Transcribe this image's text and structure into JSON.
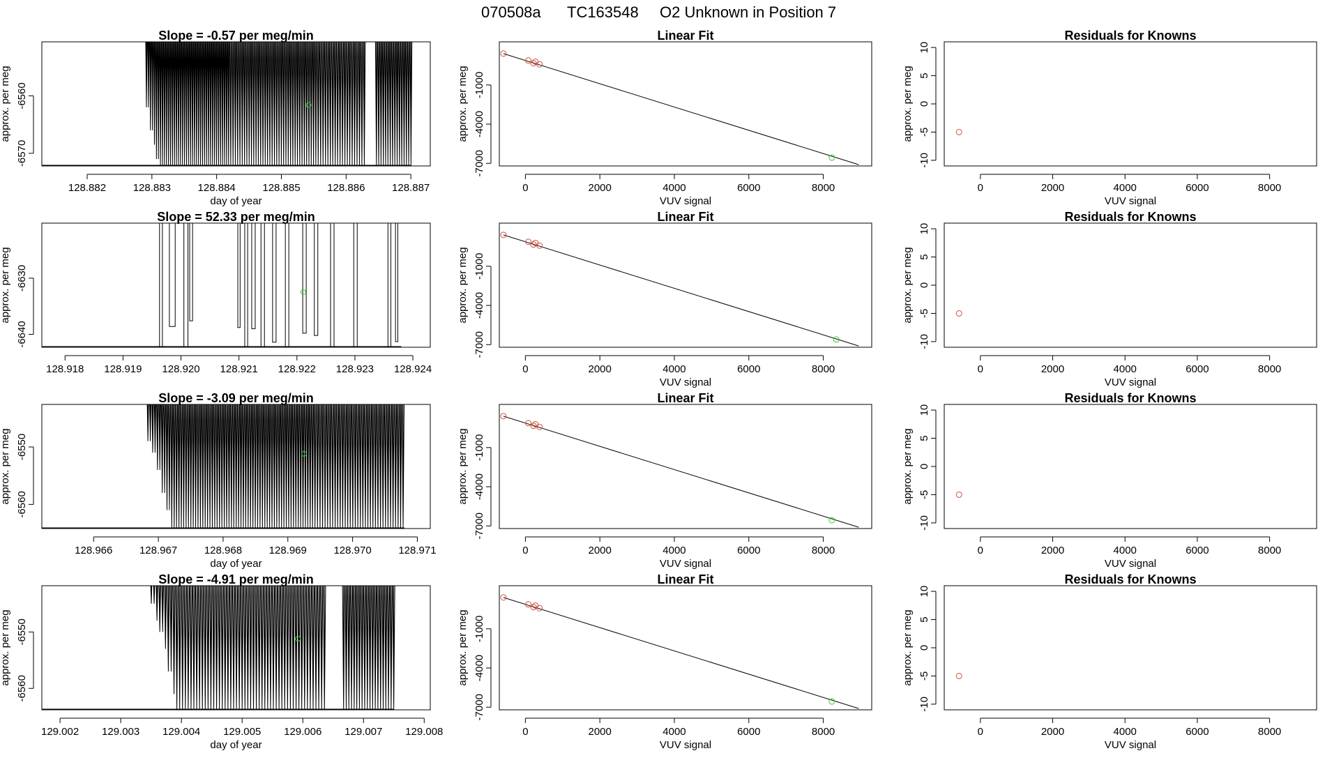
{
  "page": {
    "title": {
      "run": "070508a",
      "tank": "TC163548",
      "desc": "O2 Unknown in Position  7"
    }
  },
  "colors": {
    "known": "#d0513f",
    "unknown": "#33cc33",
    "line": "#000000"
  },
  "chart_data": [
    {
      "type": "line",
      "panel": "time",
      "row": 0,
      "title": "Slope =  -0.57  per meg/min",
      "xlabel": "day of year",
      "ylabel": "approx. per meg",
      "xlim": [
        128.8813,
        128.8873
      ],
      "ylim": [
        -6572.2,
        -6550.6
      ],
      "xticks": [
        128.882,
        128.883,
        128.884,
        128.885,
        128.886,
        128.887
      ],
      "xtick_labels": [
        "128.882",
        "128.883",
        "128.884",
        "128.885",
        "128.886",
        "128.887"
      ],
      "yticks": [
        -6560,
        -6570
      ],
      "ytick_labels": [
        "-6560",
        "-6570"
      ],
      "segments": [
        {
          "x0": 128.8829,
          "x1": 128.8842,
          "n": 42,
          "depth_seq": [
            -6562,
            -6566,
            -6568.5,
            -6571,
            -6572.2
          ],
          "bottom_start": 128.88315
        },
        {
          "x0": 128.8842,
          "x1": 128.88555,
          "n": 38,
          "depth_seq": [
            -6572.2
          ],
          "bottom_start": 128.8842
        },
        {
          "x0": 128.88555,
          "x1": 128.8863,
          "n": 20,
          "depth_seq": [
            -6572.2
          ],
          "bottom_start": 128.88555
        },
        {
          "x0": 128.88645,
          "x1": 128.88702,
          "n": 16,
          "depth_seq": [
            -6572.2
          ],
          "bottom_start": 128.88645
        }
      ],
      "bottom_line": [
        128.8813,
        128.887
      ],
      "marker": {
        "x": 128.88542,
        "y": -6561.6,
        "kind": "unknown"
      }
    },
    {
      "type": "scatter",
      "panel": "fit",
      "row": 0,
      "title": "Linear Fit",
      "xlabel": "VUV signal",
      "ylabel": "approx. per meg",
      "xlim": [
        -700,
        9300
      ],
      "ylim": [
        -7200,
        2300
      ],
      "xticks": [
        0,
        2000,
        4000,
        6000,
        8000
      ],
      "xtick_labels": [
        "0",
        "2000",
        "4000",
        "6000",
        "8000"
      ],
      "yticks": [
        -1000,
        -4000,
        -7000
      ],
      "ytick_labels": [
        "-1000",
        "-4000",
        "-7000"
      ],
      "knowns": [
        [
          -590,
          1400
        ],
        [
          80,
          870
        ],
        [
          220,
          660
        ],
        [
          270,
          780
        ],
        [
          380,
          580
        ]
      ],
      "unknowns": [
        [
          8230,
          -6560
        ]
      ],
      "fit_line": [
        [
          -590,
          1400
        ],
        [
          8950,
          -7100
        ]
      ]
    },
    {
      "type": "scatter",
      "panel": "residuals",
      "row": 0,
      "title": "Residuals for Knowns",
      "xlabel": "VUV signal",
      "ylabel": "approx. per meg",
      "xlim": [
        -1000,
        9300
      ],
      "ylim": [
        -11,
        11
      ],
      "xticks": [
        0,
        2000,
        4000,
        6000,
        8000
      ],
      "xtick_labels": [
        "0",
        "2000",
        "4000",
        "6000",
        "8000"
      ],
      "yticks": [
        10,
        5,
        0,
        -5,
        -10
      ],
      "ytick_labels": [
        "10",
        "5",
        "0",
        "-5",
        "-10"
      ],
      "points": [
        [
          -590,
          -5
        ]
      ]
    },
    {
      "type": "line",
      "panel": "time",
      "row": 1,
      "title": "Slope =  52.33  per meg/min",
      "xlabel": "",
      "ylabel": "approx. per meg",
      "xlim": [
        128.9176,
        128.9243
      ],
      "ylim": [
        -6642.3,
        -6620.2
      ],
      "xticks": [
        128.918,
        128.919,
        128.92,
        128.921,
        128.922,
        128.923,
        128.924
      ],
      "xtick_labels": [
        "128.918",
        "128.919",
        "128.920",
        "128.921",
        "128.922",
        "128.923",
        "128.924"
      ],
      "yticks": [
        -6630,
        -6640
      ],
      "ytick_labels": [
        "-6630",
        "-6640"
      ],
      "spikes": [
        [
          128.91963,
          128.91968,
          -6642.3
        ],
        [
          128.9198,
          128.9199,
          -6638.6
        ],
        [
          128.92005,
          128.92012,
          -6642.3
        ],
        [
          128.92015,
          128.9202,
          -6637.6
        ],
        [
          128.92098,
          128.92102,
          -6638.8
        ],
        [
          128.9211,
          128.92115,
          -6642.3
        ],
        [
          128.92122,
          128.92128,
          -6639
        ],
        [
          128.92138,
          128.92144,
          -6642.3
        ],
        [
          128.92158,
          128.92164,
          -6641.4
        ],
        [
          128.9218,
          128.92186,
          -6642.3
        ],
        [
          128.9221,
          128.92216,
          -6639.8
        ],
        [
          128.9223,
          128.92236,
          -6640.2
        ],
        [
          128.92258,
          128.92264,
          -6642.3
        ],
        [
          128.92298,
          128.92304,
          -6642.3
        ],
        [
          128.92357,
          128.92362,
          -6642.3
        ],
        [
          128.9237,
          128.92374,
          -6641.3
        ]
      ],
      "bottom_line": [
        128.9176,
        128.9238
      ],
      "marker": {
        "x": 128.92211,
        "y": -6632.5,
        "kind": "unknown"
      }
    },
    {
      "type": "scatter",
      "panel": "fit",
      "row": 1,
      "title": "Linear Fit",
      "xlabel": "VUV signal",
      "ylabel": "approx. per meg",
      "xlim": [
        -700,
        9300
      ],
      "ylim": [
        -7200,
        2300
      ],
      "xticks": [
        0,
        2000,
        4000,
        6000,
        8000
      ],
      "xtick_labels": [
        "0",
        "2000",
        "4000",
        "6000",
        "8000"
      ],
      "yticks": [
        -1000,
        -4000,
        -7000
      ],
      "ytick_labels": [
        "-1000",
        "-4000",
        "-7000"
      ],
      "knowns": [
        [
          -590,
          1400
        ],
        [
          80,
          870
        ],
        [
          220,
          660
        ],
        [
          270,
          780
        ],
        [
          380,
          580
        ]
      ],
      "unknowns": [
        [
          8350,
          -6600
        ]
      ],
      "fit_line": [
        [
          -590,
          1400
        ],
        [
          8950,
          -7100
        ]
      ]
    },
    {
      "type": "scatter",
      "panel": "residuals",
      "row": 1,
      "title": "Residuals for Knowns",
      "xlabel": "VUV signal",
      "ylabel": "approx. per meg",
      "xlim": [
        -1000,
        9300
      ],
      "ylim": [
        -11,
        11
      ],
      "xticks": [
        0,
        2000,
        4000,
        6000,
        8000
      ],
      "xtick_labels": [
        "0",
        "2000",
        "4000",
        "6000",
        "8000"
      ],
      "yticks": [
        10,
        5,
        0,
        -5,
        -10
      ],
      "ytick_labels": [
        "10",
        "5",
        "0",
        "-5",
        "-10"
      ],
      "points": [
        [
          -590,
          -5
        ]
      ]
    },
    {
      "type": "line",
      "panel": "time",
      "row": 2,
      "title": "Slope =  -3.09  per meg/min",
      "xlabel": "day of year",
      "ylabel": "approx. per meg",
      "xlim": [
        128.9652,
        128.9712
      ],
      "ylim": [
        -6564.2,
        -6542.6
      ],
      "xticks": [
        128.966,
        128.967,
        128.968,
        128.969,
        128.97,
        128.971
      ],
      "xtick_labels": [
        "128.966",
        "128.967",
        "128.968",
        "128.969",
        "128.970",
        "128.971"
      ],
      "yticks": [
        -6550,
        -6560
      ],
      "ytick_labels": [
        "-6550",
        "-6560"
      ],
      "segments": [
        {
          "x0": 128.96682,
          "x1": 128.9694,
          "n": 70,
          "depth_seq": [
            -6549,
            -6551,
            -6554,
            -6558,
            -6561,
            -6564.2
          ],
          "bottom_start": 128.96722
        },
        {
          "x0": 128.9694,
          "x1": 128.9708,
          "n": 36,
          "depth_seq": [
            -6564.2
          ],
          "bottom_start": 128.9694
        }
      ],
      "bottom_line": [
        128.9652,
        128.9708
      ],
      "marker": {
        "x": 128.96925,
        "y": -6551.2,
        "kind": "unknown"
      }
    },
    {
      "type": "scatter",
      "panel": "fit",
      "row": 2,
      "title": "Linear Fit",
      "xlabel": "VUV signal",
      "ylabel": "approx. per meg",
      "xlim": [
        -700,
        9300
      ],
      "ylim": [
        -7200,
        2300
      ],
      "xticks": [
        0,
        2000,
        4000,
        6000,
        8000
      ],
      "xtick_labels": [
        "0",
        "2000",
        "4000",
        "6000",
        "8000"
      ],
      "yticks": [
        -1000,
        -4000,
        -7000
      ],
      "ytick_labels": [
        "-1000",
        "-4000",
        "-7000"
      ],
      "knowns": [
        [
          -590,
          1400
        ],
        [
          80,
          870
        ],
        [
          220,
          660
        ],
        [
          270,
          780
        ],
        [
          380,
          580
        ]
      ],
      "unknowns": [
        [
          8230,
          -6560
        ]
      ],
      "fit_line": [
        [
          -590,
          1400
        ],
        [
          8950,
          -7100
        ]
      ]
    },
    {
      "type": "scatter",
      "panel": "residuals",
      "row": 2,
      "title": "Residuals for Knowns",
      "xlabel": "VUV signal",
      "ylabel": "approx. per meg",
      "xlim": [
        -1000,
        9300
      ],
      "ylim": [
        -11,
        11
      ],
      "xticks": [
        0,
        2000,
        4000,
        6000,
        8000
      ],
      "xtick_labels": [
        "0",
        "2000",
        "4000",
        "6000",
        "8000"
      ],
      "yticks": [
        10,
        5,
        0,
        -5,
        -10
      ],
      "ytick_labels": [
        "10",
        "5",
        "0",
        "-5",
        "-10"
      ],
      "points": [
        [
          -590,
          -5
        ]
      ]
    },
    {
      "type": "line",
      "panel": "time",
      "row": 3,
      "title": "Slope =  -4.91  per meg/min",
      "xlabel": "day of year",
      "ylabel": "approx. per meg",
      "xlim": [
        129.0017,
        129.0081
      ],
      "ylim": [
        -6563.8,
        -6541.8
      ],
      "xticks": [
        129.002,
        129.003,
        129.004,
        129.005,
        129.006,
        129.007,
        129.008
      ],
      "xtick_labels": [
        "129.002",
        "129.003",
        "129.004",
        "129.005",
        "129.006",
        "129.007",
        "129.008"
      ],
      "yticks": [
        -6550,
        -6560
      ],
      "ytick_labels": [
        "-6550",
        "-6560"
      ],
      "segments": [
        {
          "x0": 129.00348,
          "x1": 129.00638,
          "n": 62,
          "depth_seq": [
            -6545,
            -6548,
            -6550,
            -6553,
            -6557,
            -6561,
            -6563.8
          ],
          "bottom_start": 129.00395
        },
        {
          "x0": 129.00665,
          "x1": 129.00752,
          "n": 20,
          "depth_seq": [
            -6563.8
          ],
          "bottom_start": 129.00665
        }
      ],
      "bottom_line": [
        129.0017,
        129.0075
      ],
      "marker": {
        "x": 129.00592,
        "y": -6551.2,
        "kind": "unknown"
      }
    },
    {
      "type": "scatter",
      "panel": "fit",
      "row": 3,
      "title": "Linear Fit",
      "xlabel": "VUV signal",
      "ylabel": "approx. per meg",
      "xlim": [
        -700,
        9300
      ],
      "ylim": [
        -7200,
        2300
      ],
      "xticks": [
        0,
        2000,
        4000,
        6000,
        8000
      ],
      "xtick_labels": [
        "0",
        "2000",
        "4000",
        "6000",
        "8000"
      ],
      "yticks": [
        -1000,
        -4000,
        -7000
      ],
      "ytick_labels": [
        "-1000",
        "-4000",
        "-7000"
      ],
      "knowns": [
        [
          -590,
          1400
        ],
        [
          80,
          870
        ],
        [
          220,
          660
        ],
        [
          270,
          780
        ],
        [
          380,
          580
        ]
      ],
      "unknowns": [
        [
          8230,
          -6560
        ]
      ],
      "fit_line": [
        [
          -590,
          1400
        ],
        [
          8950,
          -7100
        ]
      ]
    },
    {
      "type": "scatter",
      "panel": "residuals",
      "row": 3,
      "title": "Residuals for Knowns",
      "xlabel": "VUV signal",
      "ylabel": "approx. per meg",
      "xlim": [
        -1000,
        9300
      ],
      "ylim": [
        -11,
        11
      ],
      "xticks": [
        0,
        2000,
        4000,
        6000,
        8000
      ],
      "xtick_labels": [
        "0",
        "2000",
        "4000",
        "6000",
        "8000"
      ],
      "yticks": [
        10,
        5,
        0,
        -5,
        -10
      ],
      "ytick_labels": [
        "10",
        "5",
        "0",
        "-5",
        "-10"
      ],
      "points": [
        [
          -590,
          -5
        ]
      ]
    }
  ]
}
